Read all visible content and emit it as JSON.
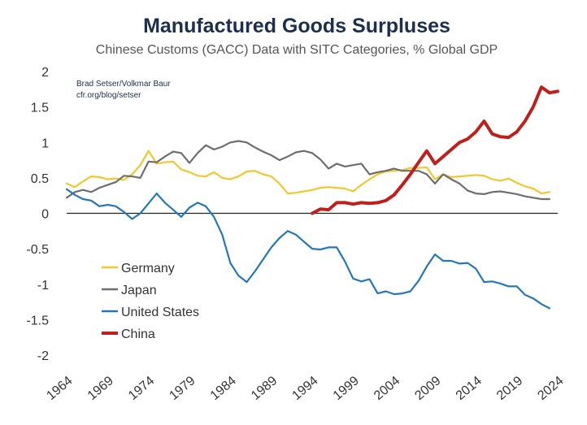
{
  "chart_data": {
    "type": "line",
    "title": "Manufactured Goods Surpluses",
    "subtitle": "Chinese Customs (GACC) Data with SITC Categories, % Global GDP",
    "source_lines": [
      "Brad Setser/Volkmar Baur",
      "cfr.org/blog/setser"
    ],
    "xlabel": "",
    "ylabel": "",
    "xlim": [
      1964,
      2024
    ],
    "ylim": [
      -2,
      2
    ],
    "x_ticks": [
      "1964",
      "1969",
      "1974",
      "1979",
      "1984",
      "1989",
      "1994",
      "1999",
      "2004",
      "2009",
      "2014",
      "2019",
      "2024"
    ],
    "y_ticks": [
      "2",
      "1.5",
      "1",
      "0.5",
      "0",
      "-0.5",
      "-1",
      "-1.5",
      "-2"
    ],
    "grid": false,
    "legend_position": "bottom-left",
    "series": [
      {
        "name": "Germany",
        "color": "#f2c62f",
        "x": [
          1964,
          1965,
          1966,
          1967,
          1968,
          1969,
          1970,
          1971,
          1972,
          1973,
          1974,
          1975,
          1976,
          1977,
          1978,
          1979,
          1980,
          1981,
          1982,
          1983,
          1984,
          1985,
          1986,
          1987,
          1988,
          1989,
          1990,
          1991,
          1992,
          1993,
          1994,
          1995,
          1996,
          1997,
          1998,
          1999,
          2000,
          2001,
          2002,
          2003,
          2004,
          2005,
          2006,
          2007,
          2008,
          2009,
          2010,
          2011,
          2012,
          2013,
          2014,
          2015,
          2016,
          2017,
          2018,
          2019,
          2020,
          2021,
          2022,
          2023
        ],
        "values": [
          0.42,
          0.37,
          0.45,
          0.52,
          0.51,
          0.48,
          0.49,
          0.47,
          0.55,
          0.68,
          0.88,
          0.7,
          0.72,
          0.73,
          0.62,
          0.58,
          0.53,
          0.52,
          0.58,
          0.5,
          0.48,
          0.52,
          0.59,
          0.6,
          0.55,
          0.52,
          0.42,
          0.28,
          0.29,
          0.31,
          0.33,
          0.36,
          0.37,
          0.36,
          0.35,
          0.31,
          0.4,
          0.48,
          0.55,
          0.59,
          0.6,
          0.61,
          0.64,
          0.64,
          0.65,
          0.48,
          0.55,
          0.51,
          0.52,
          0.53,
          0.54,
          0.53,
          0.48,
          0.46,
          0.49,
          0.43,
          0.38,
          0.35,
          0.28,
          0.3
        ]
      },
      {
        "name": "Japan",
        "color": "#6e6e6e",
        "x": [
          1964,
          1965,
          1966,
          1967,
          1968,
          1969,
          1970,
          1971,
          1972,
          1973,
          1974,
          1975,
          1976,
          1977,
          1978,
          1979,
          1980,
          1981,
          1982,
          1983,
          1984,
          1985,
          1986,
          1987,
          1988,
          1989,
          1990,
          1991,
          1992,
          1993,
          1994,
          1995,
          1996,
          1997,
          1998,
          1999,
          2000,
          2001,
          2002,
          2003,
          2004,
          2005,
          2006,
          2007,
          2008,
          2009,
          2010,
          2011,
          2012,
          2013,
          2014,
          2015,
          2016,
          2017,
          2018,
          2019,
          2020,
          2021,
          2022,
          2023
        ],
        "values": [
          0.22,
          0.3,
          0.33,
          0.3,
          0.36,
          0.4,
          0.44,
          0.53,
          0.52,
          0.5,
          0.73,
          0.72,
          0.8,
          0.87,
          0.85,
          0.71,
          0.85,
          0.96,
          0.9,
          0.94,
          1.0,
          1.02,
          1.0,
          0.93,
          0.87,
          0.82,
          0.75,
          0.8,
          0.86,
          0.88,
          0.85,
          0.76,
          0.63,
          0.7,
          0.66,
          0.68,
          0.7,
          0.55,
          0.58,
          0.6,
          0.63,
          0.6,
          0.6,
          0.6,
          0.55,
          0.42,
          0.55,
          0.48,
          0.42,
          0.32,
          0.28,
          0.27,
          0.3,
          0.31,
          0.29,
          0.27,
          0.24,
          0.22,
          0.2,
          0.2
        ]
      },
      {
        "name": "United States",
        "color": "#2478b8",
        "x": [
          1964,
          1965,
          1966,
          1967,
          1968,
          1969,
          1970,
          1971,
          1972,
          1973,
          1974,
          1975,
          1976,
          1977,
          1978,
          1979,
          1980,
          1981,
          1982,
          1983,
          1984,
          1985,
          1986,
          1987,
          1988,
          1989,
          1990,
          1991,
          1992,
          1993,
          1994,
          1995,
          1996,
          1997,
          1998,
          1999,
          2000,
          2001,
          2002,
          2003,
          2004,
          2005,
          2006,
          2007,
          2008,
          2009,
          2010,
          2011,
          2012,
          2013,
          2014,
          2015,
          2016,
          2017,
          2018,
          2019,
          2020,
          2021,
          2022,
          2023
        ],
        "values": [
          0.34,
          0.26,
          0.2,
          0.18,
          0.1,
          0.12,
          0.1,
          0.02,
          -0.08,
          0.0,
          0.14,
          0.28,
          0.15,
          0.05,
          -0.05,
          0.08,
          0.15,
          0.1,
          -0.05,
          -0.3,
          -0.7,
          -0.88,
          -0.97,
          -0.82,
          -0.65,
          -0.48,
          -0.35,
          -0.25,
          -0.3,
          -0.4,
          -0.5,
          -0.51,
          -0.48,
          -0.48,
          -0.68,
          -0.92,
          -0.96,
          -0.93,
          -1.13,
          -1.1,
          -1.14,
          -1.13,
          -1.1,
          -0.95,
          -0.75,
          -0.58,
          -0.67,
          -0.67,
          -0.71,
          -0.7,
          -0.78,
          -0.97,
          -0.96,
          -0.99,
          -1.03,
          -1.03,
          -1.15,
          -1.2,
          -1.28,
          -1.34
        ]
      },
      {
        "name": "China",
        "color": "#c0201c",
        "x": [
          1994,
          1995,
          1996,
          1997,
          1998,
          1999,
          2000,
          2001,
          2002,
          2003,
          2004,
          2005,
          2006,
          2007,
          2008,
          2009,
          2010,
          2011,
          2012,
          2013,
          2014,
          2015,
          2016,
          2017,
          2018,
          2019,
          2020,
          2021,
          2022,
          2023,
          2024
        ],
        "values": [
          0.0,
          0.06,
          0.05,
          0.15,
          0.15,
          0.13,
          0.15,
          0.14,
          0.15,
          0.18,
          0.26,
          0.4,
          0.55,
          0.72,
          0.88,
          0.7,
          0.8,
          0.9,
          1.0,
          1.05,
          1.15,
          1.3,
          1.12,
          1.08,
          1.07,
          1.15,
          1.3,
          1.5,
          1.78,
          1.7,
          1.72
        ]
      }
    ]
  }
}
